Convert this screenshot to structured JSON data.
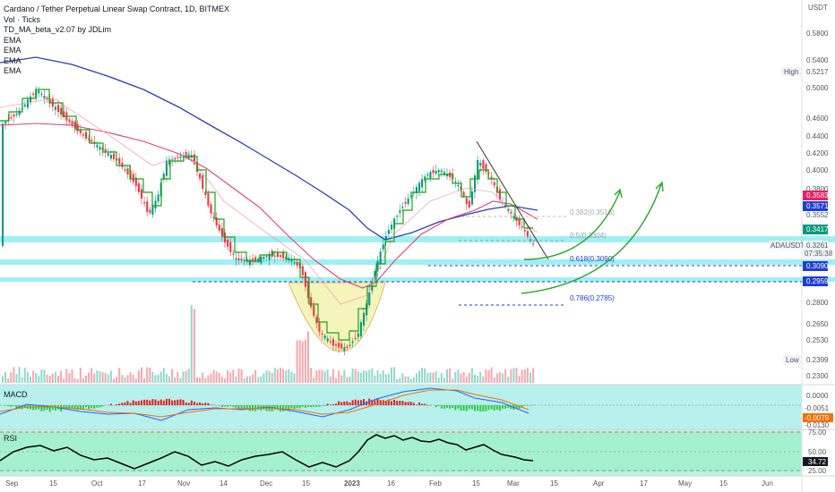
{
  "header": {
    "title": "Cardano / Tether Perpetual Linear Swap Contract, 1D, BITMEX",
    "indicators": [
      "Vol · Ticks",
      "TD_MA_beta_v2.07 by JDLim",
      "EMA",
      "EMA",
      "EMA",
      "EMA"
    ]
  },
  "price_axis": {
    "unit": "USDT",
    "ticks": [
      "0.5800",
      "0.5400",
      "0.5000",
      "0.4600",
      "0.4400",
      "0.4200",
      "0.4000",
      "0.3800",
      "0.3552",
      "0.2800",
      "0.2650",
      "0.2530",
      "0.2300"
    ],
    "high": {
      "label": "High",
      "value": "0.5217"
    },
    "low": {
      "label": "Low",
      "value": "0.2399"
    },
    "tags": [
      {
        "value": "0.3583",
        "color": "#e91e63"
      },
      {
        "value": "0.3571",
        "color": "#1e3dd8"
      },
      {
        "value": "0.3417",
        "color": "#089981"
      },
      {
        "value": "0.3090",
        "color": "#1e3dd8"
      },
      {
        "value": "0.2959",
        "color": "#1e3dd8"
      }
    ],
    "symbol_tag": {
      "symbol": "ADAUSDT",
      "price": "0.3261",
      "countdown": "07:35:38"
    }
  },
  "fib_levels": [
    {
      "label": "0.382(0.3516)",
      "color": "#aaaaaa"
    },
    {
      "label": "0.5(0.3304)",
      "color": "#7faab0"
    },
    {
      "label": "0.618(0.3090)",
      "color": "#1e3dd8"
    },
    {
      "label": "0.786(0.2785)",
      "color": "#1e3dd8"
    }
  ],
  "time_axis": [
    "Sep",
    "15",
    "Oct",
    "17",
    "Nov",
    "14",
    "Dec",
    "15",
    "2023",
    "16",
    "Feb",
    "15",
    "Mar",
    "15",
    "Apr",
    "17",
    "May",
    "15",
    "Jun"
  ],
  "macd": {
    "label": "MACD",
    "ticks": [
      "0.0000",
      "-0.0051",
      "-0.0079",
      "-0.0130"
    ]
  },
  "rsi": {
    "label": "RSI",
    "ticks": [
      "75.00",
      "50.00",
      "34.72",
      "25.00"
    ]
  },
  "colors": {
    "up": "#089981",
    "down": "#f23645",
    "ema_blue": "#2a3fb8",
    "ema_pink": "#e0407a",
    "td_green": "#1aa31a"
  }
}
